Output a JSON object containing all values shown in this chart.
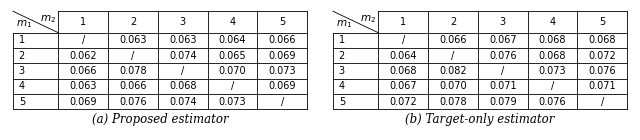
{
  "table_a": {
    "caption": "(a) Proposed estimator",
    "col_labels": [
      "1",
      "2",
      "3",
      "4",
      "5"
    ],
    "row_labels": [
      "1",
      "2",
      "3",
      "4",
      "5"
    ],
    "cells": [
      [
        "/",
        "0.063",
        "0.063",
        "0.064",
        "0.066"
      ],
      [
        "0.062",
        "/",
        "0.074",
        "0.065",
        "0.069"
      ],
      [
        "0.066",
        "0.078",
        "/",
        "0.070",
        "0.073"
      ],
      [
        "0.063",
        "0.066",
        "0.068",
        "/",
        "0.069"
      ],
      [
        "0.069",
        "0.076",
        "0.074",
        "0.073",
        "/"
      ]
    ]
  },
  "table_b": {
    "caption": "(b) Target-only estimator",
    "col_labels": [
      "1",
      "2",
      "3",
      "4",
      "5"
    ],
    "row_labels": [
      "1",
      "2",
      "3",
      "4",
      "5"
    ],
    "cells": [
      [
        "/",
        "0.066",
        "0.067",
        "0.068",
        "0.068"
      ],
      [
        "0.064",
        "/",
        "0.076",
        "0.068",
        "0.072"
      ],
      [
        "0.068",
        "0.082",
        "/",
        "0.073",
        "0.076"
      ],
      [
        "0.067",
        "0.070",
        "0.071",
        "/",
        "0.071"
      ],
      [
        "0.072",
        "0.078",
        "0.079",
        "0.076",
        "/"
      ]
    ]
  },
  "figsize": [
    6.4,
    1.4
  ],
  "dpi": 100,
  "font_size": 7.0,
  "caption_font_size": 8.5,
  "header_font_size": 7.5,
  "text_color": "#000000",
  "line_color": "#000000",
  "bg_color": "#ffffff"
}
